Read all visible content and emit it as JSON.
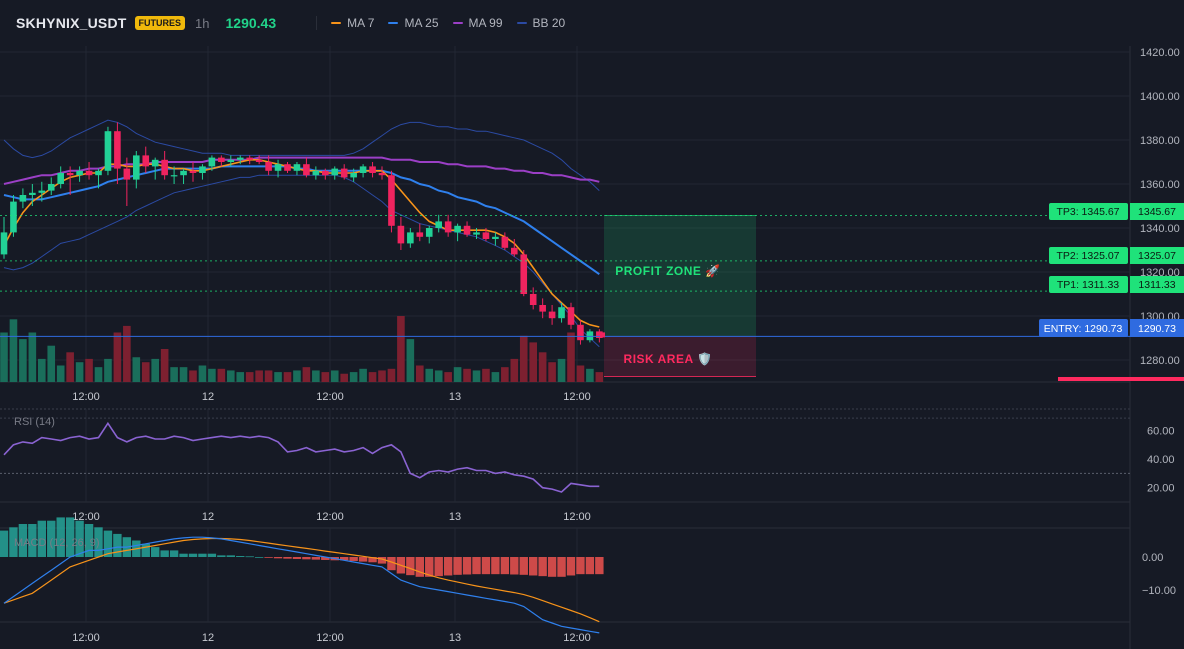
{
  "header": {
    "symbol": "SKHYNIX_USDT",
    "badge": "FUTURES",
    "timeframe": "1h",
    "last_price": "1290.43",
    "legend": [
      {
        "label": "MA 7",
        "color": "#f7931a"
      },
      {
        "label": "MA 25",
        "color": "#2f80ed"
      },
      {
        "label": "MA 99",
        "color": "#9b3fc6"
      },
      {
        "label": "BB 20",
        "color": "#2b4aa3"
      }
    ]
  },
  "colors": {
    "up": "#22d196",
    "down": "#f0245f",
    "bg": "#161a25",
    "grid": "#222733",
    "profit": "#1fe27a",
    "risk": "#ff2a5f",
    "entry": "#2f6be0"
  },
  "price_axis": {
    "ticks": [
      "1420.00",
      "1400.00",
      "1380.00",
      "1360.00",
      "1340.00",
      "1320.00",
      "1300.00",
      "1280.00"
    ]
  },
  "time_axis": {
    "labels": [
      "12:00",
      "12",
      "12:00",
      "13",
      "12:00"
    ]
  },
  "levels": {
    "tp3": {
      "label": "TP3: 1345.67",
      "value": "1345.67"
    },
    "tp2": {
      "label": "TP2: 1325.07",
      "value": "1325.07"
    },
    "tp1": {
      "label": "TP1: 1311.33",
      "value": "1311.33"
    },
    "entry": {
      "label": "ENTRY: 1290.73",
      "value": "1290.73"
    }
  },
  "zones": {
    "profit_label": "PROFIT ZONE 🚀",
    "risk_label": "RISK AREA 🛡️"
  },
  "rsi": {
    "title": "RSI (14)",
    "ticks": [
      "60.00",
      "40.00",
      "20.00"
    ]
  },
  "macd": {
    "title": "MACD (12, 26, 9)",
    "ticks": [
      "0.00",
      "−10.00"
    ]
  },
  "chart_data": {
    "type": "candlestick",
    "title": "",
    "ylim": [
      1270,
      1420
    ],
    "candles": [
      {
        "o": 1328,
        "h": 1345,
        "l": 1326,
        "c": 1338
      },
      {
        "o": 1338,
        "h": 1355,
        "l": 1336,
        "c": 1352
      },
      {
        "o": 1352,
        "h": 1358,
        "l": 1349,
        "c": 1355
      },
      {
        "o": 1355,
        "h": 1360,
        "l": 1350,
        "c": 1356
      },
      {
        "o": 1356,
        "h": 1361,
        "l": 1352,
        "c": 1357
      },
      {
        "o": 1357,
        "h": 1363,
        "l": 1355,
        "c": 1360
      },
      {
        "o": 1360,
        "h": 1368,
        "l": 1358,
        "c": 1365
      },
      {
        "o": 1365,
        "h": 1368,
        "l": 1355,
        "c": 1364
      },
      {
        "o": 1364,
        "h": 1368,
        "l": 1361,
        "c": 1366
      },
      {
        "o": 1366,
        "h": 1370,
        "l": 1362,
        "c": 1364
      },
      {
        "o": 1364,
        "h": 1367,
        "l": 1358,
        "c": 1366
      },
      {
        "o": 1366,
        "h": 1386,
        "l": 1364,
        "c": 1384
      },
      {
        "o": 1384,
        "h": 1388,
        "l": 1360,
        "c": 1367
      },
      {
        "o": 1367,
        "h": 1372,
        "l": 1350,
        "c": 1362
      },
      {
        "o": 1362,
        "h": 1375,
        "l": 1358,
        "c": 1373
      },
      {
        "o": 1373,
        "h": 1377,
        "l": 1365,
        "c": 1368
      },
      {
        "o": 1368,
        "h": 1372,
        "l": 1362,
        "c": 1371
      },
      {
        "o": 1371,
        "h": 1375,
        "l": 1362,
        "c": 1364
      },
      {
        "o": 1364,
        "h": 1368,
        "l": 1360,
        "c": 1364
      },
      {
        "o": 1364,
        "h": 1367,
        "l": 1360,
        "c": 1366
      },
      {
        "o": 1366,
        "h": 1370,
        "l": 1361,
        "c": 1365
      },
      {
        "o": 1365,
        "h": 1369,
        "l": 1362,
        "c": 1368
      },
      {
        "o": 1368,
        "h": 1373,
        "l": 1366,
        "c": 1372
      },
      {
        "o": 1372,
        "h": 1373,
        "l": 1368,
        "c": 1370
      },
      {
        "o": 1370,
        "h": 1373,
        "l": 1368,
        "c": 1371
      },
      {
        "o": 1371,
        "h": 1373,
        "l": 1369,
        "c": 1372
      },
      {
        "o": 1372,
        "h": 1373,
        "l": 1369,
        "c": 1371
      },
      {
        "o": 1371,
        "h": 1373,
        "l": 1369,
        "c": 1370
      },
      {
        "o": 1370,
        "h": 1373,
        "l": 1364,
        "c": 1366
      },
      {
        "o": 1366,
        "h": 1371,
        "l": 1363,
        "c": 1369
      },
      {
        "o": 1369,
        "h": 1370,
        "l": 1365,
        "c": 1366
      },
      {
        "o": 1366,
        "h": 1370,
        "l": 1364,
        "c": 1369
      },
      {
        "o": 1369,
        "h": 1372,
        "l": 1363,
        "c": 1364
      },
      {
        "o": 1364,
        "h": 1368,
        "l": 1362,
        "c": 1366
      },
      {
        "o": 1366,
        "h": 1367,
        "l": 1362,
        "c": 1364
      },
      {
        "o": 1364,
        "h": 1368,
        "l": 1362,
        "c": 1367
      },
      {
        "o": 1367,
        "h": 1369,
        "l": 1362,
        "c": 1363
      },
      {
        "o": 1363,
        "h": 1367,
        "l": 1361,
        "c": 1365
      },
      {
        "o": 1365,
        "h": 1369,
        "l": 1363,
        "c": 1368
      },
      {
        "o": 1368,
        "h": 1370,
        "l": 1363,
        "c": 1365
      },
      {
        "o": 1365,
        "h": 1368,
        "l": 1362,
        "c": 1364
      },
      {
        "o": 1364,
        "h": 1366,
        "l": 1338,
        "c": 1341
      },
      {
        "o": 1341,
        "h": 1345,
        "l": 1330,
        "c": 1333
      },
      {
        "o": 1333,
        "h": 1340,
        "l": 1331,
        "c": 1338
      },
      {
        "o": 1338,
        "h": 1342,
        "l": 1334,
        "c": 1336
      },
      {
        "o": 1336,
        "h": 1341,
        "l": 1333,
        "c": 1340
      },
      {
        "o": 1340,
        "h": 1346,
        "l": 1338,
        "c": 1343
      },
      {
        "o": 1343,
        "h": 1346,
        "l": 1336,
        "c": 1338
      },
      {
        "o": 1338,
        "h": 1342,
        "l": 1334,
        "c": 1341
      },
      {
        "o": 1341,
        "h": 1343,
        "l": 1336,
        "c": 1337
      },
      {
        "o": 1337,
        "h": 1340,
        "l": 1335,
        "c": 1338
      },
      {
        "o": 1338,
        "h": 1340,
        "l": 1334,
        "c": 1335
      },
      {
        "o": 1335,
        "h": 1338,
        "l": 1332,
        "c": 1336
      },
      {
        "o": 1336,
        "h": 1338,
        "l": 1330,
        "c": 1331
      },
      {
        "o": 1331,
        "h": 1335,
        "l": 1327,
        "c": 1328
      },
      {
        "o": 1328,
        "h": 1330,
        "l": 1309,
        "c": 1310
      },
      {
        "o": 1310,
        "h": 1313,
        "l": 1303,
        "c": 1305
      },
      {
        "o": 1305,
        "h": 1308,
        "l": 1299,
        "c": 1302
      },
      {
        "o": 1302,
        "h": 1305,
        "l": 1296,
        "c": 1299
      },
      {
        "o": 1299,
        "h": 1306,
        "l": 1297,
        "c": 1304
      },
      {
        "o": 1304,
        "h": 1306,
        "l": 1294,
        "c": 1296
      },
      {
        "o": 1296,
        "h": 1298,
        "l": 1287,
        "c": 1289
      },
      {
        "o": 1289,
        "h": 1294,
        "l": 1288,
        "c": 1293
      },
      {
        "o": 1293,
        "h": 1294,
        "l": 1288,
        "c": 1290
      }
    ],
    "volume": [
      30,
      38,
      26,
      30,
      14,
      22,
      10,
      18,
      12,
      14,
      9,
      14,
      30,
      34,
      15,
      12,
      14,
      20,
      9,
      9,
      7,
      10,
      8,
      8,
      7,
      6,
      6,
      7,
      7,
      6,
      6,
      7,
      9,
      7,
      6,
      7,
      5,
      6,
      8,
      6,
      7,
      8,
      40,
      26,
      10,
      8,
      7,
      6,
      9,
      8,
      7,
      8,
      6,
      9,
      14,
      28,
      24,
      18,
      12,
      14,
      30,
      10,
      8,
      6
    ],
    "ma7": [
      1332,
      1340,
      1347,
      1352,
      1355,
      1358,
      1361,
      1363,
      1364,
      1365,
      1365,
      1369,
      1369,
      1368,
      1368,
      1369,
      1369,
      1368,
      1367,
      1367,
      1366,
      1366,
      1367,
      1368,
      1369,
      1370,
      1371,
      1371,
      1370,
      1369,
      1368,
      1367,
      1366,
      1366,
      1365,
      1365,
      1365,
      1365,
      1366,
      1366,
      1366,
      1362,
      1357,
      1352,
      1347,
      1343,
      1341,
      1339,
      1339,
      1339,
      1339,
      1339,
      1338,
      1336,
      1333,
      1328,
      1322,
      1316,
      1310,
      1306,
      1302,
      1298,
      1296,
      1295
    ],
    "ma25": [
      1355,
      1354,
      1353,
      1353,
      1353,
      1354,
      1355,
      1356,
      1357,
      1358,
      1359,
      1361,
      1362,
      1363,
      1364,
      1365,
      1366,
      1367,
      1367,
      1367,
      1367,
      1367,
      1367,
      1368,
      1368,
      1368,
      1368,
      1368,
      1368,
      1368,
      1368,
      1367,
      1367,
      1366,
      1366,
      1366,
      1366,
      1366,
      1366,
      1366,
      1366,
      1365,
      1363,
      1362,
      1360,
      1359,
      1357,
      1356,
      1354,
      1353,
      1352,
      1350,
      1349,
      1347,
      1345,
      1343,
      1340,
      1337,
      1334,
      1331,
      1328,
      1325,
      1322,
      1319
    ],
    "ma99": [
      1360,
      1361,
      1362,
      1363,
      1364,
      1364,
      1365,
      1366,
      1366,
      1367,
      1367,
      1368,
      1368,
      1369,
      1369,
      1369,
      1370,
      1370,
      1370,
      1370,
      1370,
      1370,
      1371,
      1371,
      1371,
      1371,
      1371,
      1372,
      1372,
      1372,
      1372,
      1372,
      1372,
      1372,
      1372,
      1372,
      1372,
      1372,
      1372,
      1372,
      1372,
      1371,
      1371,
      1371,
      1370,
      1370,
      1370,
      1369,
      1369,
      1368,
      1368,
      1368,
      1367,
      1367,
      1366,
      1366,
      1365,
      1365,
      1364,
      1364,
      1363,
      1362,
      1362,
      1361
    ],
    "bb_upper": [
      1380,
      1376,
      1373,
      1372,
      1373,
      1375,
      1378,
      1381,
      1383,
      1385,
      1387,
      1389,
      1388,
      1386,
      1383,
      1381,
      1379,
      1378,
      1377,
      1376,
      1375,
      1374,
      1374,
      1374,
      1373,
      1373,
      1373,
      1373,
      1373,
      1373,
      1373,
      1373,
      1373,
      1373,
      1373,
      1373,
      1373,
      1374,
      1376,
      1379,
      1382,
      1385,
      1387,
      1388,
      1388,
      1387,
      1386,
      1386,
      1385,
      1385,
      1384,
      1384,
      1383,
      1382,
      1381,
      1380,
      1378,
      1376,
      1374,
      1371,
      1367,
      1364,
      1361,
      1357
    ],
    "bb_lower": [
      1322,
      1321,
      1322,
      1324,
      1327,
      1330,
      1333,
      1334,
      1335,
      1337,
      1339,
      1341,
      1343,
      1345,
      1348,
      1350,
      1352,
      1354,
      1356,
      1357,
      1358,
      1359,
      1360,
      1361,
      1362,
      1363,
      1363,
      1364,
      1364,
      1364,
      1364,
      1364,
      1364,
      1364,
      1364,
      1364,
      1363,
      1361,
      1358,
      1355,
      1352,
      1348,
      1346,
      1344,
      1342,
      1341,
      1340,
      1339,
      1338,
      1337,
      1336,
      1334,
      1332,
      1330,
      1327,
      1324,
      1320,
      1315,
      1310,
      1305,
      1300,
      1294,
      1290,
      1286
    ],
    "rsi": [
      43,
      50,
      52,
      51,
      55,
      54,
      53,
      55,
      56,
      54,
      55,
      65,
      55,
      52,
      55,
      56,
      54,
      54,
      56,
      55,
      53,
      54,
      55,
      56,
      55,
      56,
      55,
      56,
      55,
      52,
      45,
      46,
      48,
      45,
      46,
      47,
      45,
      46,
      48,
      44,
      48,
      50,
      45,
      30,
      27,
      31,
      32,
      31,
      33,
      34,
      32,
      32,
      30,
      31,
      29,
      28,
      26,
      20,
      19,
      17,
      23,
      22,
      21,
      21
    ],
    "macd_hist": [
      8,
      9,
      10,
      10,
      11,
      11,
      12,
      12,
      11,
      10,
      9,
      8,
      7,
      6,
      5,
      4,
      3,
      2,
      2,
      1,
      1,
      1,
      1,
      0.5,
      0.5,
      0.3,
      0.2,
      0,
      -0.2,
      -0.4,
      -0.5,
      -0.6,
      -0.7,
      -0.8,
      -0.9,
      -1,
      -1,
      -1.2,
      -1.4,
      -1.6,
      -2,
      -4,
      -5,
      -5.5,
      -6,
      -6,
      -5.8,
      -5.6,
      -5.4,
      -5.3,
      -5.2,
      -5.2,
      -5.2,
      -5.2,
      -5.3,
      -5.4,
      -5.6,
      -5.8,
      -6,
      -6,
      -5.6,
      -5.2,
      -5.2,
      -5.2
    ],
    "macd_line": [
      -14,
      -12,
      -10,
      -8,
      -6,
      -4,
      -2,
      0,
      1,
      2,
      2,
      2.5,
      3,
      3,
      3.5,
      4,
      4.5,
      5,
      5.5,
      5.8,
      6,
      6,
      5.8,
      5.5,
      5,
      4.5,
      4,
      3.5,
      3,
      2.5,
      2,
      1.5,
      1,
      0.5,
      0,
      -0.5,
      -1,
      -1.5,
      -2,
      -2.5,
      -3,
      -5,
      -7,
      -8,
      -9,
      -9.5,
      -10,
      -10.5,
      -11,
      -11.5,
      -12,
      -12.5,
      -13,
      -13.5,
      -14,
      -15,
      -17,
      -19,
      -20,
      -21,
      -21.5,
      -22,
      -22.5,
      -23
    ],
    "macd_signal": [
      -14,
      -13,
      -12,
      -11,
      -9,
      -7,
      -5,
      -3,
      -2,
      -1,
      0,
      1,
      1.5,
      2,
      2.5,
      3,
      3.5,
      4,
      4.5,
      5,
      5.3,
      5.5,
      5.6,
      5.6,
      5.5,
      5.3,
      5,
      4.6,
      4.2,
      3.8,
      3.4,
      3,
      2.6,
      2.2,
      1.8,
      1.4,
      1,
      0.6,
      0.2,
      -0.2,
      -0.6,
      -1.5,
      -2.5,
      -3.5,
      -4.5,
      -5.5,
      -6.3,
      -7,
      -7.6,
      -8.2,
      -8.8,
      -9.3,
      -9.8,
      -10.3,
      -10.8,
      -11.4,
      -12.2,
      -13.2,
      -14.2,
      -15.2,
      -16.2,
      -17.2,
      -18.4,
      -19.6
    ]
  }
}
